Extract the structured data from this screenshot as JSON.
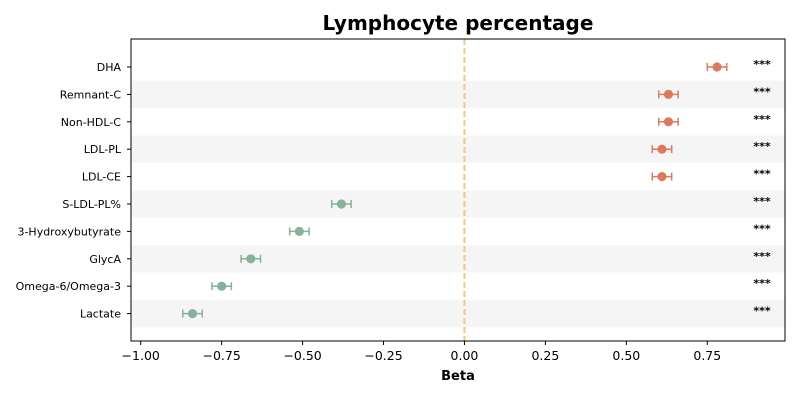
{
  "chart_data": {
    "type": "scatter",
    "subtype": "forest-plot",
    "title": "Lymphocyte percentage",
    "xlabel": "Beta",
    "ylabel": "",
    "xlim": [
      -1.03,
      0.99
    ],
    "xticks": [
      -1.0,
      -0.75,
      -0.5,
      -0.25,
      0.0,
      0.25,
      0.5,
      0.75
    ],
    "xtick_labels": [
      "−1.00",
      "−0.75",
      "−0.50",
      "−0.25",
      "0.00",
      "0.25",
      "0.50",
      "0.75"
    ],
    "reference_line": {
      "x": 0.0,
      "style": "dashed",
      "color": "#f5c987"
    },
    "grid": false,
    "alternating_row_shading": true,
    "colors": {
      "positive": "#dc7a5f",
      "negative": "#86b29c",
      "row_shade": "#f5f5f5"
    },
    "categories": [
      "DHA",
      "Remnant-C",
      "Non-HDL-C",
      "LDL-PL",
      "LDL-CE",
      "S-LDL-PL%",
      "3-Hydroxybutyrate",
      "GlycA",
      "Omega-6/Omega-3",
      "Lactate"
    ],
    "beta": [
      0.78,
      0.63,
      0.63,
      0.61,
      0.61,
      -0.38,
      -0.51,
      -0.66,
      -0.75,
      -0.84
    ],
    "ci_lower": [
      0.75,
      0.6,
      0.6,
      0.58,
      0.58,
      -0.41,
      -0.54,
      -0.69,
      -0.78,
      -0.87
    ],
    "ci_upper": [
      0.81,
      0.66,
      0.66,
      0.64,
      0.64,
      -0.35,
      -0.48,
      -0.63,
      -0.72,
      -0.81
    ],
    "significance": [
      "***",
      "***",
      "***",
      "***",
      "***",
      "***",
      "***",
      "***",
      "***",
      "***"
    ]
  }
}
